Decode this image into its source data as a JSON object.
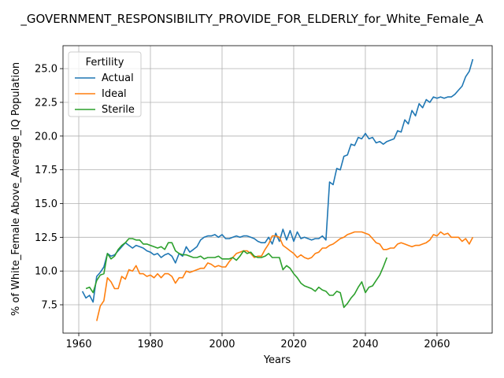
{
  "chart_data": {
    "type": "line",
    "title": "_GOVERNMENT_RESPONSIBILITY_PROVIDE_FOR_ELDERLY_for_White_Female_A",
    "xlabel": "Years",
    "ylabel": "% of White_Female Above_Average_IQ Population",
    "xlim": [
      1955.6,
      2075.4
    ],
    "ylim": [
      5.4,
      26.7
    ],
    "xticks": [
      1960,
      1980,
      2000,
      2020,
      2040,
      2060
    ],
    "yticks": [
      7.5,
      10.0,
      12.5,
      15.0,
      17.5,
      20.0,
      22.5,
      25.0
    ],
    "grid": true,
    "legend": {
      "title": "Fertility",
      "placement": "upper left"
    },
    "series": [
      {
        "name": "Actual",
        "color": "#1f77b4",
        "x": [
          1961,
          1962,
          1963,
          1964,
          1965,
          1966,
          1967,
          1968,
          1969,
          1970,
          1971,
          1972,
          1973,
          1974,
          1975,
          1976,
          1977,
          1978,
          1979,
          1980,
          1981,
          1982,
          1983,
          1984,
          1985,
          1986,
          1987,
          1988,
          1989,
          1990,
          1991,
          1992,
          1993,
          1994,
          1995,
          1996,
          1997,
          1998,
          1999,
          2000,
          2001,
          2002,
          2003,
          2004,
          2005,
          2006,
          2007,
          2008,
          2009,
          2010,
          2011,
          2012,
          2013,
          2014,
          2015,
          2016,
          2017,
          2018,
          2019,
          2020,
          2021,
          2022,
          2023,
          2024,
          2025,
          2026,
          2027,
          2028,
          2029,
          2030,
          2031,
          2032,
          2033,
          2034,
          2035,
          2036,
          2037,
          2038,
          2039,
          2040,
          2041,
          2042,
          2043,
          2044,
          2045,
          2046,
          2047,
          2048,
          2049,
          2050,
          2051,
          2052,
          2053,
          2054,
          2055,
          2056,
          2057,
          2058,
          2059,
          2060,
          2061,
          2062,
          2063,
          2064,
          2065,
          2066,
          2067,
          2068,
          2069,
          2070
        ],
        "values": [
          8.5,
          8.0,
          8.2,
          7.7,
          9.6,
          9.9,
          10.3,
          11.3,
          11.1,
          11.2,
          11.5,
          11.8,
          12.1,
          11.9,
          11.7,
          11.9,
          11.8,
          11.7,
          11.5,
          11.4,
          11.2,
          11.3,
          11.0,
          11.2,
          11.3,
          11.1,
          10.6,
          11.3,
          11.1,
          11.8,
          11.4,
          11.6,
          11.8,
          12.3,
          12.5,
          12.6,
          12.6,
          12.7,
          12.5,
          12.7,
          12.4,
          12.4,
          12.5,
          12.6,
          12.5,
          12.6,
          12.6,
          12.5,
          12.4,
          12.2,
          12.1,
          12.1,
          12.5,
          12.0,
          12.8,
          12.2,
          13.1,
          12.3,
          13.0,
          12.2,
          12.9,
          12.4,
          12.5,
          12.4,
          12.3,
          12.4,
          12.4,
          12.6,
          12.3,
          16.6,
          16.4,
          17.6,
          17.5,
          18.5,
          18.6,
          19.4,
          19.3,
          19.9,
          19.8,
          20.2,
          19.8,
          19.9,
          19.5,
          19.6,
          19.4,
          19.6,
          19.7,
          19.8,
          20.4,
          20.3,
          21.2,
          20.9,
          21.9,
          21.5,
          22.4,
          22.1,
          22.7,
          22.5,
          22.9,
          22.8,
          22.9,
          22.8,
          22.9,
          22.9,
          23.1,
          23.4,
          23.7,
          24.4,
          24.8,
          25.7
        ]
      },
      {
        "name": "Ideal",
        "color": "#ff7f0e",
        "x": [
          1965,
          1966,
          1967,
          1968,
          1969,
          1970,
          1971,
          1972,
          1973,
          1974,
          1975,
          1976,
          1977,
          1978,
          1979,
          1980,
          1981,
          1982,
          1983,
          1984,
          1985,
          1986,
          1987,
          1988,
          1989,
          1990,
          1991,
          1992,
          1993,
          1994,
          1995,
          1996,
          1997,
          1998,
          1999,
          2000,
          2001,
          2002,
          2003,
          2004,
          2005,
          2006,
          2007,
          2008,
          2009,
          2010,
          2011,
          2012,
          2013,
          2014,
          2015,
          2016,
          2017,
          2018,
          2019,
          2020,
          2021,
          2022,
          2023,
          2024,
          2025,
          2026,
          2027,
          2028,
          2029,
          2030,
          2031,
          2032,
          2033,
          2034,
          2035,
          2036,
          2037,
          2038,
          2039,
          2040,
          2041,
          2042,
          2043,
          2044,
          2045,
          2046,
          2047,
          2048,
          2049,
          2050,
          2051,
          2052,
          2053,
          2054,
          2055,
          2056,
          2057,
          2058,
          2059,
          2060,
          2061,
          2062,
          2063,
          2064,
          2065,
          2066,
          2067,
          2068,
          2069,
          2070
        ],
        "values": [
          6.3,
          7.4,
          7.8,
          9.5,
          9.2,
          8.7,
          8.7,
          9.6,
          9.4,
          10.1,
          10.0,
          10.4,
          9.8,
          9.8,
          9.6,
          9.7,
          9.5,
          9.8,
          9.5,
          9.8,
          9.8,
          9.6,
          9.1,
          9.5,
          9.5,
          10.0,
          9.9,
          10.0,
          10.1,
          10.2,
          10.2,
          10.6,
          10.5,
          10.3,
          10.4,
          10.3,
          10.3,
          10.7,
          11.0,
          11.3,
          11.4,
          11.5,
          11.5,
          11.3,
          11.0,
          11.1,
          11.1,
          11.6,
          12.0,
          12.6,
          12.6,
          12.5,
          11.9,
          11.7,
          11.5,
          11.3,
          11.0,
          11.2,
          11.0,
          10.9,
          11.0,
          11.3,
          11.4,
          11.7,
          11.7,
          11.9,
          12.0,
          12.2,
          12.4,
          12.5,
          12.7,
          12.8,
          12.9,
          12.9,
          12.9,
          12.8,
          12.7,
          12.4,
          12.1,
          12.0,
          11.6,
          11.6,
          11.7,
          11.7,
          12.0,
          12.1,
          12.0,
          11.9,
          11.8,
          11.9,
          11.9,
          12.0,
          12.1,
          12.3,
          12.7,
          12.6,
          12.9,
          12.7,
          12.8,
          12.5,
          12.5,
          12.5,
          12.2,
          12.4,
          12.0,
          12.5
        ]
      },
      {
        "name": "Sterile",
        "color": "#2ca02c",
        "x": [
          1962,
          1963,
          1964,
          1965,
          1966,
          1967,
          1968,
          1969,
          1970,
          1971,
          1972,
          1973,
          1974,
          1975,
          1976,
          1977,
          1978,
          1979,
          1980,
          1981,
          1982,
          1983,
          1984,
          1985,
          1986,
          1987,
          1988,
          1989,
          1990,
          1991,
          1992,
          1993,
          1994,
          1995,
          1996,
          1997,
          1998,
          1999,
          2000,
          2001,
          2002,
          2003,
          2004,
          2005,
          2006,
          2007,
          2008,
          2009,
          2010,
          2011,
          2012,
          2013,
          2014,
          2015,
          2016,
          2017,
          2018,
          2019,
          2020,
          2021,
          2022,
          2023,
          2024,
          2025,
          2026,
          2027,
          2028,
          2029,
          2030,
          2031,
          2032,
          2033,
          2034,
          2035,
          2036,
          2037,
          2038,
          2039,
          2040,
          2041,
          2042,
          2043,
          2044,
          2045,
          2046
        ],
        "values": [
          8.7,
          8.8,
          8.4,
          9.3,
          9.7,
          9.8,
          11.3,
          10.9,
          11.1,
          11.6,
          11.9,
          12.1,
          12.4,
          12.4,
          12.3,
          12.3,
          12.0,
          12.0,
          11.9,
          11.8,
          11.7,
          11.8,
          11.6,
          12.1,
          12.1,
          11.5,
          11.3,
          11.2,
          11.2,
          11.1,
          11.0,
          11.0,
          11.1,
          10.9,
          11.0,
          11.0,
          11.0,
          11.1,
          10.9,
          10.9,
          10.9,
          11.0,
          10.8,
          11.1,
          11.5,
          11.3,
          11.4,
          11.1,
          11.0,
          11.0,
          11.1,
          11.3,
          11.0,
          11.0,
          11.0,
          10.1,
          10.4,
          10.2,
          9.8,
          9.5,
          9.1,
          8.9,
          8.8,
          8.7,
          8.5,
          8.8,
          8.6,
          8.5,
          8.2,
          8.2,
          8.5,
          8.4,
          7.3,
          7.6,
          8.0,
          8.3,
          8.8,
          9.2,
          8.4,
          8.8,
          8.9,
          9.3,
          9.7,
          10.3,
          11.0
        ]
      }
    ]
  }
}
